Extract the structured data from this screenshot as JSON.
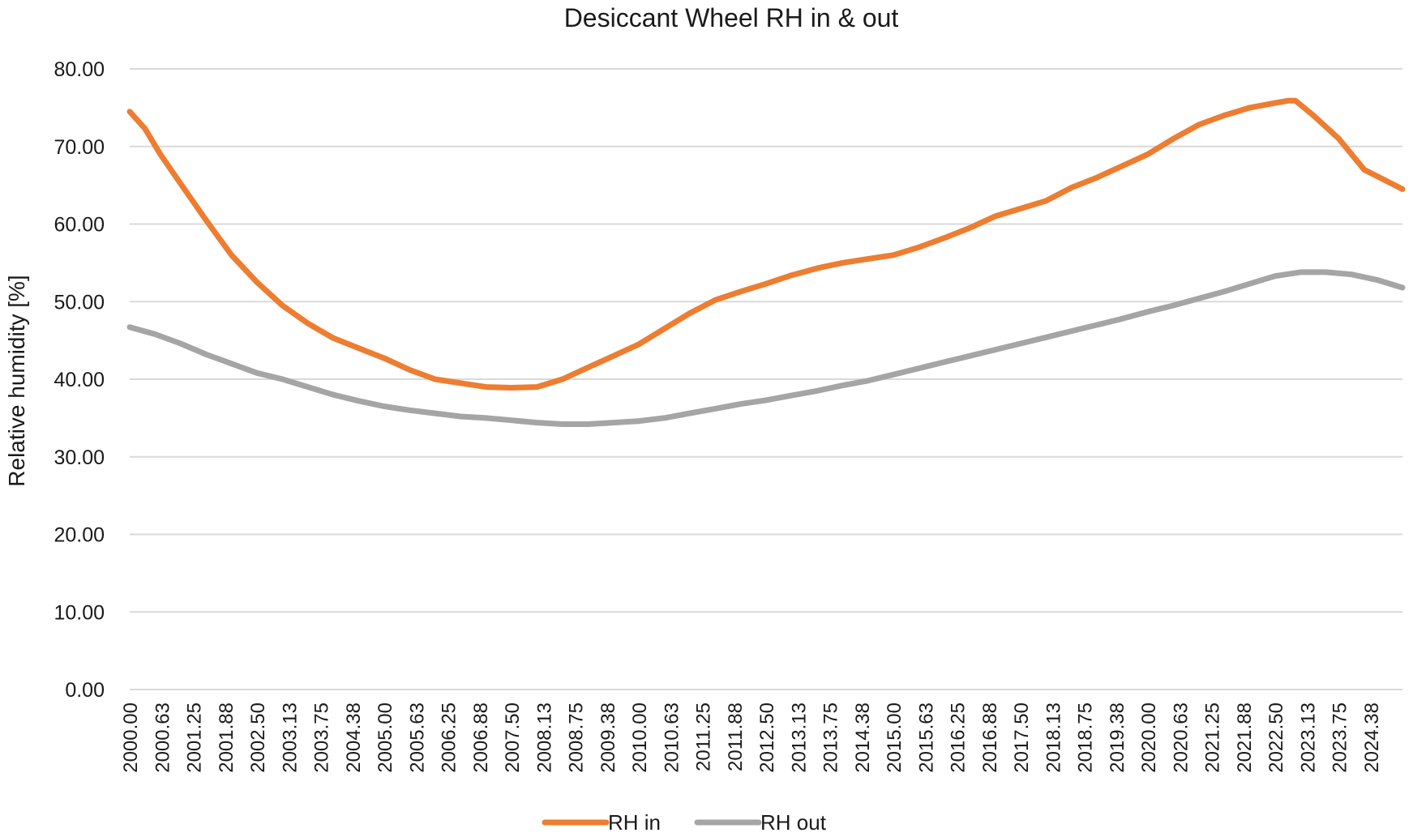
{
  "chart_data": {
    "type": "line",
    "title": "Desiccant Wheel RH in & out",
    "xlabel": "",
    "ylabel": "Relative humidity [%]",
    "ylim": [
      0,
      80
    ],
    "yticks": [
      "0.00",
      "10.00",
      "20.00",
      "30.00",
      "40.00",
      "50.00",
      "60.00",
      "70.00",
      "80.00"
    ],
    "xlim": [
      2000.0,
      2025.0
    ],
    "xticks": [
      "2000.00",
      "2000.63",
      "2001.25",
      "2001.88",
      "2002.50",
      "2003.13",
      "2003.75",
      "2004.38",
      "2005.00",
      "2005.63",
      "2006.25",
      "2006.88",
      "2007.50",
      "2008.13",
      "2008.75",
      "2009.38",
      "2010.00",
      "2010.63",
      "2011.25",
      "2011.88",
      "2012.50",
      "2013.13",
      "2013.75",
      "2014.38",
      "2015.00",
      "2015.63",
      "2016.25",
      "2016.88",
      "2017.50",
      "2018.13",
      "2018.75",
      "2019.38",
      "2020.00",
      "2020.63",
      "2021.25",
      "2021.88",
      "2022.50",
      "2023.13",
      "2023.75",
      "2024.38"
    ],
    "grid": true,
    "legend_position": "bottom",
    "series": [
      {
        "name": "RH in",
        "color": "#ed7d31",
        "points": [
          [
            2000.0,
            74.5
          ],
          [
            2000.3,
            72.3
          ],
          [
            2000.6,
            69.0
          ],
          [
            2001.0,
            65.2
          ],
          [
            2001.5,
            60.5
          ],
          [
            2002.0,
            56.0
          ],
          [
            2002.5,
            52.5
          ],
          [
            2003.0,
            49.5
          ],
          [
            2003.5,
            47.2
          ],
          [
            2004.0,
            45.3
          ],
          [
            2004.5,
            44.0
          ],
          [
            2005.0,
            42.7
          ],
          [
            2005.5,
            41.2
          ],
          [
            2006.0,
            40.0
          ],
          [
            2006.5,
            39.5
          ],
          [
            2007.0,
            39.0
          ],
          [
            2007.5,
            38.9
          ],
          [
            2008.0,
            39.0
          ],
          [
            2008.5,
            40.0
          ],
          [
            2009.0,
            41.5
          ],
          [
            2009.5,
            43.0
          ],
          [
            2010.0,
            44.5
          ],
          [
            2010.5,
            46.5
          ],
          [
            2011.0,
            48.5
          ],
          [
            2011.5,
            50.2
          ],
          [
            2012.0,
            51.3
          ],
          [
            2012.5,
            52.3
          ],
          [
            2013.0,
            53.4
          ],
          [
            2013.5,
            54.3
          ],
          [
            2014.0,
            55.0
          ],
          [
            2014.5,
            55.5
          ],
          [
            2015.0,
            56.0
          ],
          [
            2015.5,
            57.0
          ],
          [
            2016.0,
            58.2
          ],
          [
            2016.5,
            59.5
          ],
          [
            2017.0,
            61.0
          ],
          [
            2017.5,
            62.0
          ],
          [
            2018.0,
            63.0
          ],
          [
            2018.5,
            64.7
          ],
          [
            2019.0,
            66.0
          ],
          [
            2019.5,
            67.5
          ],
          [
            2020.0,
            69.0
          ],
          [
            2020.5,
            71.0
          ],
          [
            2021.0,
            72.8
          ],
          [
            2021.5,
            74.0
          ],
          [
            2022.0,
            75.0
          ],
          [
            2022.5,
            75.6
          ],
          [
            2022.75,
            75.9
          ],
          [
            2022.9,
            75.9
          ],
          [
            2023.25,
            74.0
          ],
          [
            2023.75,
            71.0
          ],
          [
            2024.25,
            67.0
          ],
          [
            2025.0,
            64.5
          ]
        ]
      },
      {
        "name": "RH out",
        "color": "#a5a5a5",
        "points": [
          [
            2000.0,
            46.7
          ],
          [
            2000.5,
            45.8
          ],
          [
            2001.0,
            44.6
          ],
          [
            2001.5,
            43.2
          ],
          [
            2002.0,
            42.0
          ],
          [
            2002.5,
            40.8
          ],
          [
            2003.0,
            40.0
          ],
          [
            2003.5,
            39.0
          ],
          [
            2004.0,
            38.0
          ],
          [
            2004.5,
            37.2
          ],
          [
            2005.0,
            36.5
          ],
          [
            2005.5,
            36.0
          ],
          [
            2006.0,
            35.6
          ],
          [
            2006.5,
            35.2
          ],
          [
            2007.0,
            35.0
          ],
          [
            2007.5,
            34.7
          ],
          [
            2008.0,
            34.4
          ],
          [
            2008.5,
            34.2
          ],
          [
            2009.0,
            34.2
          ],
          [
            2009.5,
            34.4
          ],
          [
            2010.0,
            34.6
          ],
          [
            2010.5,
            35.0
          ],
          [
            2011.0,
            35.6
          ],
          [
            2011.5,
            36.2
          ],
          [
            2012.0,
            36.8
          ],
          [
            2012.5,
            37.3
          ],
          [
            2013.0,
            37.9
          ],
          [
            2013.5,
            38.5
          ],
          [
            2014.0,
            39.2
          ],
          [
            2014.5,
            39.8
          ],
          [
            2015.0,
            40.6
          ],
          [
            2015.5,
            41.4
          ],
          [
            2016.0,
            42.2
          ],
          [
            2016.5,
            43.0
          ],
          [
            2017.0,
            43.8
          ],
          [
            2017.5,
            44.6
          ],
          [
            2018.0,
            45.4
          ],
          [
            2018.5,
            46.2
          ],
          [
            2019.0,
            47.0
          ],
          [
            2019.5,
            47.8
          ],
          [
            2020.0,
            48.7
          ],
          [
            2020.5,
            49.5
          ],
          [
            2021.0,
            50.4
          ],
          [
            2021.5,
            51.3
          ],
          [
            2022.0,
            52.3
          ],
          [
            2022.5,
            53.3
          ],
          [
            2023.0,
            53.8
          ],
          [
            2023.5,
            53.8
          ],
          [
            2024.0,
            53.5
          ],
          [
            2024.5,
            52.8
          ],
          [
            2025.0,
            51.8
          ]
        ]
      }
    ]
  }
}
